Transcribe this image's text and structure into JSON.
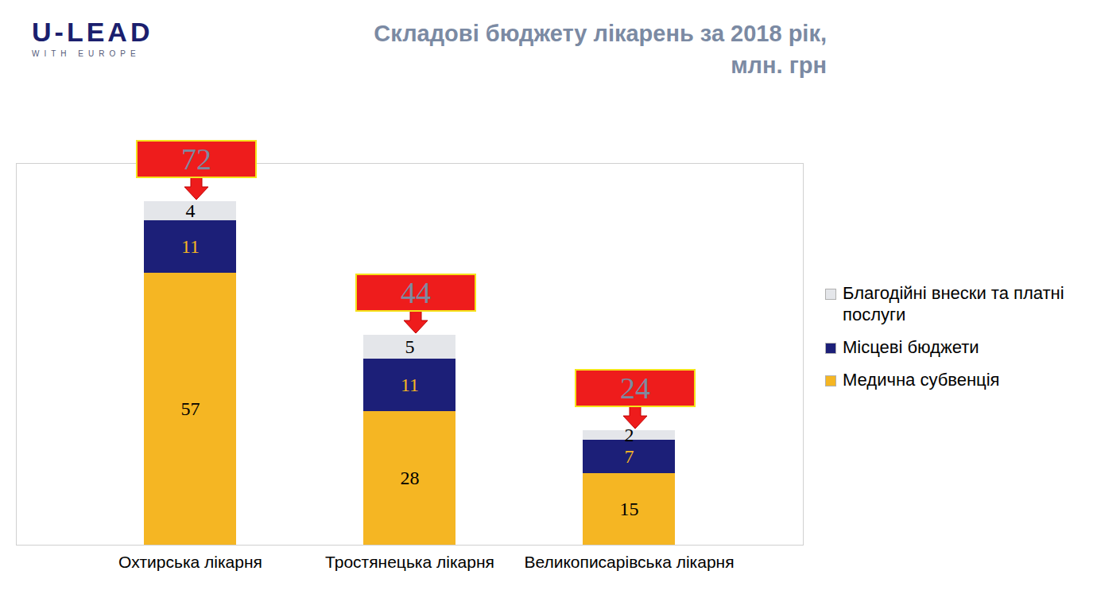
{
  "chart_data": {
    "type": "bar",
    "title": "Складові бюджету лікарень за 2018 рік, млн. грн",
    "logo_text": "U-LEAD",
    "logo_subtext": "WITH EUROPE",
    "categories": [
      "Охтирська лікарня",
      "Тростянецька лікарня",
      "Великописарівська лікарня"
    ],
    "series": [
      {
        "name": "Медична субвенція",
        "color": "#f5b623",
        "values": [
          57,
          28,
          15
        ]
      },
      {
        "name": "Місцеві бюджети",
        "color": "#1c1f78",
        "values": [
          11,
          11,
          7
        ]
      },
      {
        "name": "Благодійні внески та платні послуги",
        "color": "#e4e6ea",
        "values": [
          4,
          5,
          2
        ]
      }
    ],
    "totals": [
      72,
      44,
      24
    ],
    "ylim": [
      0,
      80
    ],
    "yticks": [],
    "stacked": true,
    "data_labels": true,
    "tick_labels": "x",
    "legend": "right"
  }
}
